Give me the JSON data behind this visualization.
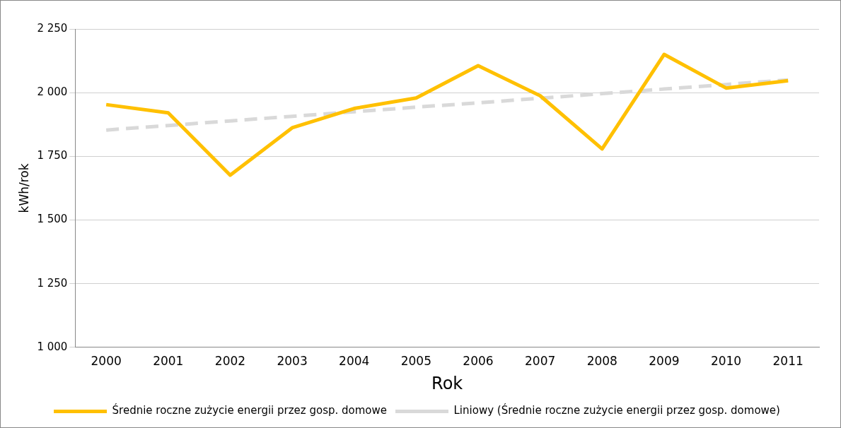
{
  "chart_data": {
    "type": "line",
    "xlabel": "Rok",
    "ylabel": "kWh/rok",
    "categories": [
      "2000",
      "2001",
      "2002",
      "2003",
      "2004",
      "2005",
      "2006",
      "2007",
      "2008",
      "2009",
      "2010",
      "2011"
    ],
    "series": [
      {
        "name": "Średnie roczne zużycie energii przez gosp. domowe",
        "color": "#ffc000",
        "line_style": "solid",
        "values": [
          1953,
          1921,
          1676,
          1862,
          1938,
          1979,
          2106,
          1988,
          1779,
          2150,
          2018,
          2047
        ]
      },
      {
        "name": "Liniowy (Średnie roczne zużycie energii przez gosp. domowe)",
        "color": "#d9d9d9",
        "line_style": "dashed",
        "values": [
          1853,
          1871,
          1889,
          1907,
          1925,
          1943,
          1960,
          1978,
          1996,
          2014,
          2032,
          2050
        ]
      }
    ],
    "ylim": [
      1000,
      2250
    ],
    "yticks": [
      {
        "value": 1000,
        "label": "1 000"
      },
      {
        "value": 1250,
        "label": "1 250"
      },
      {
        "value": 1500,
        "label": "1 500"
      },
      {
        "value": 1750,
        "label": "1 750"
      },
      {
        "value": 2000,
        "label": "2 000"
      },
      {
        "value": 2250,
        "label": "2 250"
      }
    ],
    "grid": "y",
    "legend": "bottom",
    "marker": "none"
  }
}
